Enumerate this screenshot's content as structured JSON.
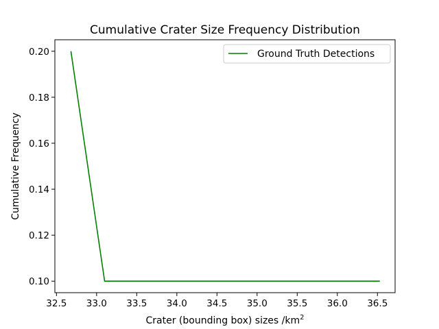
{
  "chart_data": {
    "type": "line",
    "title": "Cumulative Crater Size Frequency Distribution",
    "xlabel": "Crater (bounding box) sizes /km",
    "xlabel_superscript": "2",
    "ylabel": "Cumulative Frequency",
    "xlim": [
      32.48,
      36.72
    ],
    "ylim": [
      0.095,
      0.205
    ],
    "xticks": [
      32.5,
      33.0,
      33.5,
      34.0,
      34.5,
      35.0,
      35.5,
      36.0,
      36.5
    ],
    "xtick_labels": [
      "32.5",
      "33.0",
      "33.5",
      "34.0",
      "34.5",
      "35.0",
      "35.5",
      "36.0",
      "36.5"
    ],
    "yticks": [
      0.1,
      0.12,
      0.14,
      0.16,
      0.18,
      0.2
    ],
    "ytick_labels": [
      "0.10",
      "0.12",
      "0.14",
      "0.16",
      "0.18",
      "0.20"
    ],
    "grid": false,
    "legend_position": "top-right",
    "series": [
      {
        "name": "Ground Truth Detections",
        "color": "#008000",
        "x": [
          32.68,
          33.1,
          36.53
        ],
        "y": [
          0.2,
          0.1,
          0.1
        ]
      }
    ]
  }
}
